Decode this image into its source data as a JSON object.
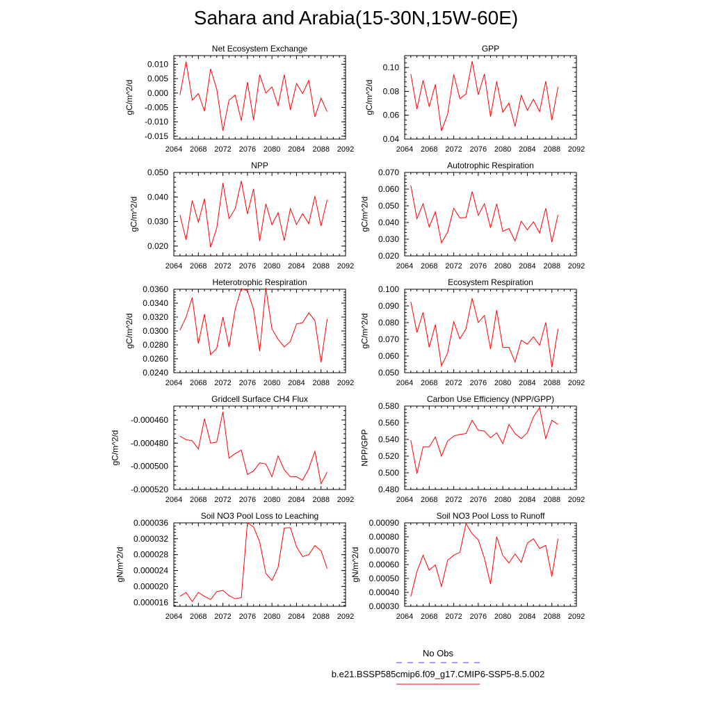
{
  "title": "Sahara and Arabia(15-30N,15W-60E)",
  "legend": {
    "obs_label": "No Obs",
    "model_label": "b.e21.BSSP585cmip6.f09_g17.CMIP6-SSP5-8.5.002",
    "obs_color": "#3a3aff",
    "model_color": "#ff0000"
  },
  "chart_data": [
    {
      "type": "line",
      "title": "Net Ecosystem Exchange",
      "ylabel": "gC/m^2/d",
      "xlim": [
        2064,
        2092
      ],
      "ylim": [
        -0.016,
        0.013
      ],
      "xticks": [
        2064,
        2068,
        2072,
        2076,
        2080,
        2084,
        2088,
        2092
      ],
      "xtick_labels": [
        "2064",
        "2068",
        "2072",
        "2076",
        "2080",
        "2084",
        "2088",
        "2092"
      ],
      "yticks": [
        -0.015,
        -0.01,
        -0.005,
        0.0,
        0.005,
        0.01
      ],
      "ytick_labels": [
        "-0.015",
        "-0.010",
        "-0.005",
        "0.000",
        "0.005",
        "0.010"
      ],
      "series": [
        {
          "name": "b.e21.BSSP585cmip6.f09_g17.CMIP6-SSP5-8.5.002",
          "color": "#ff0000",
          "x": [
            2065,
            2066,
            2067,
            2068,
            2069,
            2070,
            2071,
            2072,
            2073,
            2074,
            2075,
            2076,
            2077,
            2078,
            2079,
            2080,
            2081,
            2082,
            2083,
            2084,
            2085,
            2086,
            2087,
            2088,
            2089
          ],
          "y": [
            -0.0007,
            0.0109,
            -0.0025,
            -0.0002,
            -0.0063,
            0.0084,
            0.0013,
            -0.0131,
            -0.0025,
            -0.0007,
            -0.0096,
            0.0038,
            -0.0094,
            0.0064,
            0.0,
            0.0021,
            -0.0044,
            0.0064,
            -0.0059,
            0.0033,
            -0.0002,
            0.0044,
            -0.0083,
            -0.0018,
            -0.0065
          ]
        }
      ]
    },
    {
      "type": "line",
      "title": "GPP",
      "ylabel": "gC/m^2/d",
      "xlim": [
        2064,
        2092
      ],
      "ylim": [
        0.04,
        0.11
      ],
      "xticks": [
        2064,
        2068,
        2072,
        2076,
        2080,
        2084,
        2088,
        2092
      ],
      "xtick_labels": [
        "2064",
        "2068",
        "2072",
        "2076",
        "2080",
        "2084",
        "2088",
        "2092"
      ],
      "yticks": [
        0.04,
        0.06,
        0.08,
        0.1
      ],
      "ytick_labels": [
        "0.04",
        "0.06",
        "0.08",
        "0.10"
      ],
      "series": [
        {
          "name": "b.e21.BSSP585cmip6.f09_g17.CMIP6-SSP5-8.5.002",
          "color": "#ff0000",
          "x": [
            2065,
            2066,
            2067,
            2068,
            2069,
            2070,
            2071,
            2072,
            2073,
            2074,
            2075,
            2076,
            2077,
            2078,
            2079,
            2080,
            2081,
            2082,
            2083,
            2084,
            2085,
            2086,
            2087,
            2088,
            2089
          ],
          "y": [
            0.0945,
            0.065,
            0.0893,
            0.0671,
            0.0859,
            0.0469,
            0.0608,
            0.0942,
            0.0739,
            0.0778,
            0.1053,
            0.0772,
            0.0946,
            0.0588,
            0.0884,
            0.0625,
            0.0702,
            0.0505,
            0.0766,
            0.0641,
            0.0734,
            0.063,
            0.0886,
            0.0558,
            0.0837
          ]
        }
      ]
    },
    {
      "type": "line",
      "title": "NPP",
      "ylabel": "gC/m^2/d",
      "xlim": [
        2064,
        2092
      ],
      "ylim": [
        0.016,
        0.05
      ],
      "xticks": [
        2064,
        2068,
        2072,
        2076,
        2080,
        2084,
        2088,
        2092
      ],
      "xtick_labels": [
        "2064",
        "2068",
        "2072",
        "2076",
        "2080",
        "2084",
        "2088",
        "2092"
      ],
      "yticks": [
        0.02,
        0.03,
        0.04,
        0.05
      ],
      "ytick_labels": [
        "0.020",
        "0.030",
        "0.040",
        "0.050"
      ],
      "series": [
        {
          "name": "b.e21.BSSP585cmip6.f09_g17.CMIP6-SSP5-8.5.002",
          "color": "#ff0000",
          "x": [
            2065,
            2066,
            2067,
            2068,
            2069,
            2070,
            2071,
            2072,
            2073,
            2074,
            2075,
            2076,
            2077,
            2078,
            2079,
            2080,
            2081,
            2082,
            2083,
            2084,
            2085,
            2086,
            2087,
            2088,
            2089
          ],
          "y": [
            0.0327,
            0.0225,
            0.0385,
            0.0297,
            0.0393,
            0.0195,
            0.0274,
            0.0457,
            0.0312,
            0.0352,
            0.0465,
            0.0331,
            0.0433,
            0.022,
            0.0372,
            0.0287,
            0.0336,
            0.0222,
            0.0353,
            0.0288,
            0.0332,
            0.0291,
            0.0403,
            0.0282,
            0.0389
          ]
        }
      ]
    },
    {
      "type": "line",
      "title": "Autotrophic Respiration",
      "ylabel": "gC/m^2/d",
      "xlim": [
        2064,
        2092
      ],
      "ylim": [
        0.02,
        0.07
      ],
      "xticks": [
        2064,
        2068,
        2072,
        2076,
        2080,
        2084,
        2088,
        2092
      ],
      "xtick_labels": [
        "2064",
        "2068",
        "2072",
        "2076",
        "2080",
        "2084",
        "2088",
        "2092"
      ],
      "yticks": [
        0.02,
        0.03,
        0.04,
        0.05,
        0.06,
        0.07
      ],
      "ytick_labels": [
        "0.020",
        "0.030",
        "0.040",
        "0.050",
        "0.060",
        "0.070"
      ],
      "series": [
        {
          "name": "b.e21.BSSP585cmip6.f09_g17.CMIP6-SSP5-8.5.002",
          "color": "#ff0000",
          "x": [
            2065,
            2066,
            2067,
            2068,
            2069,
            2070,
            2071,
            2072,
            2073,
            2074,
            2075,
            2076,
            2077,
            2078,
            2079,
            2080,
            2081,
            2082,
            2083,
            2084,
            2085,
            2086,
            2087,
            2088,
            2089
          ],
          "y": [
            0.0622,
            0.0423,
            0.0512,
            0.0373,
            0.0464,
            0.0278,
            0.0342,
            0.0485,
            0.0427,
            0.043,
            0.0586,
            0.0443,
            0.0512,
            0.0368,
            0.0512,
            0.0347,
            0.0364,
            0.0289,
            0.0408,
            0.0356,
            0.0404,
            0.0337,
            0.0485,
            0.0283,
            0.0446
          ]
        }
      ]
    },
    {
      "type": "line",
      "title": "Heterotrophic Respiration",
      "ylabel": "gC/m^2/d",
      "xlim": [
        2064,
        2092
      ],
      "ylim": [
        0.024,
        0.036
      ],
      "xticks": [
        2064,
        2068,
        2072,
        2076,
        2080,
        2084,
        2088,
        2092
      ],
      "xtick_labels": [
        "2064",
        "2068",
        "2072",
        "2076",
        "2080",
        "2084",
        "2088",
        "2092"
      ],
      "yticks": [
        0.024,
        0.026,
        0.028,
        0.03,
        0.032,
        0.034,
        0.036
      ],
      "ytick_labels": [
        "0.0240",
        "0.0260",
        "0.0280",
        "0.0300",
        "0.0320",
        "0.0340",
        "0.0360"
      ],
      "series": [
        {
          "name": "b.e21.BSSP585cmip6.f09_g17.CMIP6-SSP5-8.5.002",
          "color": "#ff0000",
          "x": [
            2065,
            2066,
            2067,
            2068,
            2069,
            2070,
            2071,
            2072,
            2073,
            2074,
            2075,
            2076,
            2077,
            2078,
            2079,
            2080,
            2081,
            2082,
            2083,
            2084,
            2085,
            2086,
            2087,
            2088,
            2089
          ],
          "y": [
            0.0301,
            0.032,
            0.0348,
            0.0282,
            0.0324,
            0.0266,
            0.0275,
            0.032,
            0.0277,
            0.0331,
            0.0361,
            0.0358,
            0.0331,
            0.0271,
            0.0362,
            0.0303,
            0.0288,
            0.0277,
            0.0285,
            0.031,
            0.0312,
            0.0326,
            0.0315,
            0.0255,
            0.0317
          ]
        }
      ]
    },
    {
      "type": "line",
      "title": "Ecosystem Respiration",
      "ylabel": "gC/m^2/d",
      "xlim": [
        2064,
        2092
      ],
      "ylim": [
        0.05,
        0.1
      ],
      "xticks": [
        2064,
        2068,
        2072,
        2076,
        2080,
        2084,
        2088,
        2092
      ],
      "xtick_labels": [
        "2064",
        "2068",
        "2072",
        "2076",
        "2080",
        "2084",
        "2088",
        "2092"
      ],
      "yticks": [
        0.05,
        0.06,
        0.07,
        0.08,
        0.09,
        0.1
      ],
      "ytick_labels": [
        "0.050",
        "0.060",
        "0.070",
        "0.080",
        "0.090",
        "0.100"
      ],
      "series": [
        {
          "name": "b.e21.BSSP585cmip6.f09_g17.CMIP6-SSP5-8.5.002",
          "color": "#ff0000",
          "x": [
            2065,
            2066,
            2067,
            2068,
            2069,
            2070,
            2071,
            2072,
            2073,
            2074,
            2075,
            2076,
            2077,
            2078,
            2079,
            2080,
            2081,
            2082,
            2083,
            2084,
            2085,
            2086,
            2087,
            2088,
            2089
          ],
          "y": [
            0.0925,
            0.0741,
            0.0861,
            0.0652,
            0.0788,
            0.0541,
            0.0618,
            0.0805,
            0.0703,
            0.0763,
            0.0946,
            0.0801,
            0.0843,
            0.0641,
            0.0874,
            0.0651,
            0.0652,
            0.0564,
            0.0694,
            0.0671,
            0.0715,
            0.0664,
            0.0801,
            0.0532,
            0.0762
          ]
        }
      ]
    },
    {
      "type": "line",
      "title": "Gridcell Surface CH4 Flux",
      "ylabel": "gC/m^2/d",
      "xlim": [
        2064,
        2092
      ],
      "ylim": [
        -0.00052,
        -0.000448
      ],
      "xticks": [
        2064,
        2068,
        2072,
        2076,
        2080,
        2084,
        2088,
        2092
      ],
      "xtick_labels": [
        "2064",
        "2068",
        "2072",
        "2076",
        "2080",
        "2084",
        "2088",
        "2092"
      ],
      "yticks": [
        -0.00052,
        -0.0005,
        -0.00048,
        -0.00046
      ],
      "ytick_labels": [
        "-0.000520",
        "-0.000500",
        "-0.000480",
        "-0.000460"
      ],
      "series": [
        {
          "name": "b.e21.BSSP585cmip6.f09_g17.CMIP6-SSP5-8.5.002",
          "color": "#ff0000",
          "x": [
            2065,
            2066,
            2067,
            2068,
            2069,
            2070,
            2071,
            2072,
            2073,
            2074,
            2075,
            2076,
            2077,
            2078,
            2079,
            2080,
            2081,
            2082,
            2083,
            2084,
            2085,
            2086,
            2087,
            2088,
            2089
          ],
          "y": [
            -0.000474,
            -0.000477,
            -0.000478,
            -0.000485,
            -0.000459,
            -0.00048,
            -0.000479,
            -0.000453,
            -0.000493,
            -0.000489,
            -0.000486,
            -0.000507,
            -0.000504,
            -0.000497,
            -0.000498,
            -0.000509,
            -0.000491,
            -0.000503,
            -0.000509,
            -0.000509,
            -0.000512,
            -0.000502,
            -0.000487,
            -0.000515,
            -0.000505
          ]
        }
      ]
    },
    {
      "type": "line",
      "title": "Carbon Use Efficiency (NPP/GPP)",
      "ylabel": "NPP/GPP",
      "xlim": [
        2064,
        2092
      ],
      "ylim": [
        0.48,
        0.58
      ],
      "xticks": [
        2064,
        2068,
        2072,
        2076,
        2080,
        2084,
        2088,
        2092
      ],
      "xtick_labels": [
        "2064",
        "2068",
        "2072",
        "2076",
        "2080",
        "2084",
        "2088",
        "2092"
      ],
      "yticks": [
        0.48,
        0.5,
        0.52,
        0.54,
        0.56,
        0.58
      ],
      "ytick_labels": [
        "0.480",
        "0.500",
        "0.520",
        "0.540",
        "0.560",
        "0.580"
      ],
      "series": [
        {
          "name": "b.e21.BSSP585cmip6.f09_g17.CMIP6-SSP5-8.5.002",
          "color": "#ff0000",
          "x": [
            2065,
            2066,
            2067,
            2068,
            2069,
            2070,
            2071,
            2072,
            2073,
            2074,
            2075,
            2076,
            2077,
            2078,
            2079,
            2080,
            2081,
            2082,
            2083,
            2084,
            2085,
            2086,
            2087,
            2088,
            2089
          ],
          "y": [
            0.539,
            0.499,
            0.531,
            0.531,
            0.543,
            0.52,
            0.538,
            0.544,
            0.546,
            0.547,
            0.563,
            0.551,
            0.55,
            0.542,
            0.548,
            0.535,
            0.558,
            0.547,
            0.541,
            0.548,
            0.567,
            0.578,
            0.541,
            0.563,
            0.558
          ]
        }
      ]
    },
    {
      "type": "line",
      "title": "Soil NO3 Pool Loss to Leaching",
      "ylabel": "gN/m^2/d",
      "xlim": [
        2064,
        2092
      ],
      "ylim": [
        1.5e-05,
        3.6e-05
      ],
      "xticks": [
        2064,
        2068,
        2072,
        2076,
        2080,
        2084,
        2088,
        2092
      ],
      "xtick_labels": [
        "2064",
        "2068",
        "2072",
        "2076",
        "2080",
        "2084",
        "2088",
        "2092"
      ],
      "yticks": [
        1.6e-05,
        2e-05,
        2.4e-05,
        2.8e-05,
        3.2e-05,
        3.6e-05
      ],
      "ytick_labels": [
        "0.000016",
        "0.000020",
        "0.000024",
        "0.000028",
        "0.000032",
        "0.000036"
      ],
      "series": [
        {
          "name": "b.e21.BSSP585cmip6.f09_g17.CMIP6-SSP5-8.5.002",
          "color": "#ff0000",
          "x": [
            2065,
            2066,
            2067,
            2068,
            2069,
            2070,
            2071,
            2072,
            2073,
            2074,
            2075,
            2076,
            2077,
            2078,
            2079,
            2080,
            2081,
            2082,
            2083,
            2084,
            2085,
            2086,
            2087,
            2088,
            2089
          ],
          "y": [
            1.75e-05,
            1.85e-05,
            1.62e-05,
            1.85e-05,
            1.75e-05,
            1.67e-05,
            1.87e-05,
            1.9e-05,
            1.77e-05,
            1.69e-05,
            1.72e-05,
            3.6e-05,
            3.5e-05,
            3.12e-05,
            2.33e-05,
            2.15e-05,
            2.48e-05,
            3.47e-05,
            3.48e-05,
            3e-05,
            2.75e-05,
            2.8e-05,
            3.03e-05,
            2.9e-05,
            2.45e-05
          ]
        }
      ]
    },
    {
      "type": "line",
      "title": "Soil NO3 Pool Loss to Runoff",
      "ylabel": "gN/m^2/d",
      "xlim": [
        2064,
        2092
      ],
      "ylim": [
        0.0003,
        0.0009
      ],
      "xticks": [
        2064,
        2068,
        2072,
        2076,
        2080,
        2084,
        2088,
        2092
      ],
      "xtick_labels": [
        "2064",
        "2068",
        "2072",
        "2076",
        "2080",
        "2084",
        "2088",
        "2092"
      ],
      "yticks": [
        0.0003,
        0.0004,
        0.0005,
        0.0006,
        0.0007,
        0.0008,
        0.0009
      ],
      "ytick_labels": [
        "0.00030",
        "0.00040",
        "0.00050",
        "0.00060",
        "0.00070",
        "0.00080",
        "0.00090"
      ],
      "series": [
        {
          "name": "b.e21.BSSP585cmip6.f09_g17.CMIP6-SSP5-8.5.002",
          "color": "#ff0000",
          "x": [
            2065,
            2066,
            2067,
            2068,
            2069,
            2070,
            2071,
            2072,
            2073,
            2074,
            2075,
            2076,
            2077,
            2078,
            2079,
            2080,
            2081,
            2082,
            2083,
            2084,
            2085,
            2086,
            2087,
            2088,
            2089
          ],
          "y": [
            0.00037,
            0.00055,
            0.000667,
            0.00056,
            0.000598,
            0.000443,
            0.000631,
            0.000667,
            0.000688,
            0.000895,
            0.000822,
            0.000778,
            0.000646,
            0.00046,
            0.0008,
            0.000666,
            0.000611,
            0.000677,
            0.000616,
            0.000754,
            0.000786,
            0.000716,
            0.000738,
            0.000515,
            0.000785
          ]
        }
      ]
    }
  ]
}
